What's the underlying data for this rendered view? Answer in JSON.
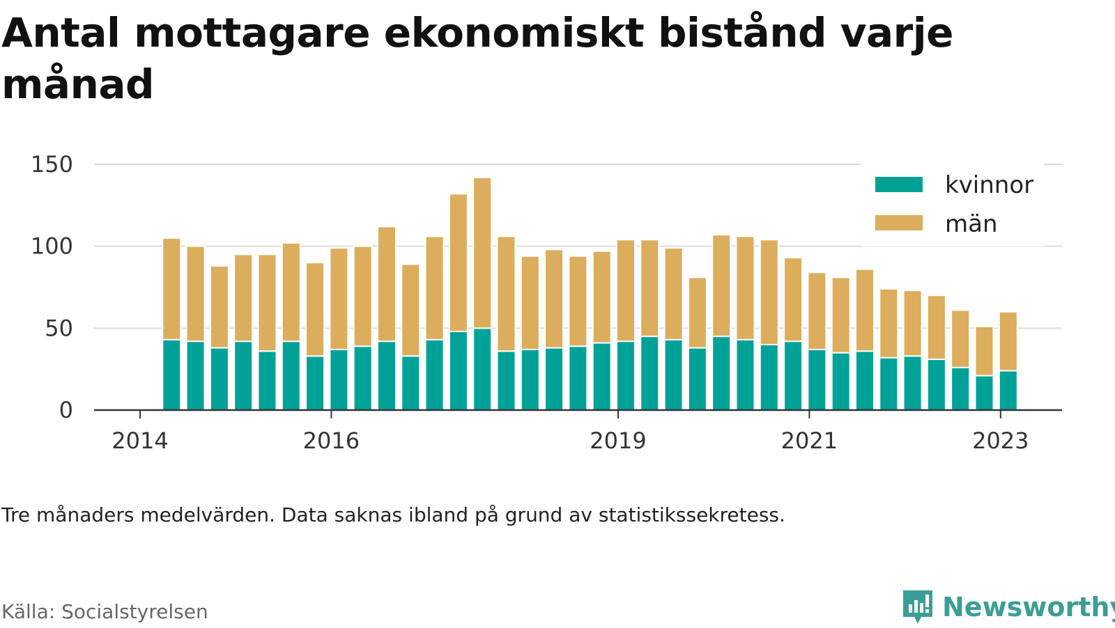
{
  "title": "Antal mottagare ekonomiskt bistånd varje månad",
  "note": "Tre månaders medelvärden. Data saknas ibland på grund av statistikssekretess.",
  "source": "Källa: Socialstyrelsen",
  "brand": {
    "name": "Newsworthy",
    "icon": "newsworthy-logo-icon",
    "color": "#3a9e96"
  },
  "colors": {
    "kvinnor": "#00a297",
    "man": "#dbad5c",
    "grid": "#dddddd",
    "axis": "#333333"
  },
  "chart_data": {
    "type": "bar",
    "stacked": true,
    "title": "Antal mottagare ekonomiskt bistånd varje månad",
    "xlabel": "",
    "ylabel": "",
    "ylim": [
      0,
      150
    ],
    "yticks": [
      0,
      50,
      100,
      150
    ],
    "xlim": [
      2014,
      2023.4
    ],
    "xticks": [
      2014,
      2016,
      2019,
      2021,
      2023
    ],
    "grid": true,
    "legend_position": "top-right",
    "x": [
      2014.33,
      2014.58,
      2014.83,
      2015.08,
      2015.33,
      2015.58,
      2015.83,
      2016.08,
      2016.33,
      2016.58,
      2016.83,
      2017.08,
      2017.33,
      2017.58,
      2017.83,
      2018.08,
      2018.33,
      2018.58,
      2018.83,
      2019.08,
      2019.33,
      2019.58,
      2019.83,
      2020.08,
      2020.33,
      2020.58,
      2020.83,
      2021.08,
      2021.33,
      2021.58,
      2021.83,
      2022.08,
      2022.33,
      2022.58,
      2022.83,
      2023.08
    ],
    "series": [
      {
        "name": "kvinnor",
        "color": "#00a297",
        "values": [
          43,
          42,
          38,
          42,
          36,
          42,
          33,
          37,
          39,
          42,
          33,
          43,
          48,
          50,
          36,
          37,
          38,
          39,
          41,
          42,
          45,
          43,
          38,
          45,
          43,
          40,
          42,
          37,
          35,
          36,
          32,
          33,
          31,
          26,
          21,
          24
        ]
      },
      {
        "name": "män",
        "color": "#dbad5c",
        "values": [
          62,
          58,
          50,
          53,
          59,
          60,
          57,
          62,
          61,
          70,
          56,
          63,
          84,
          92,
          70,
          57,
          60,
          55,
          56,
          62,
          59,
          56,
          43,
          62,
          63,
          64,
          51,
          47,
          46,
          50,
          42,
          40,
          39,
          35,
          30,
          36
        ]
      }
    ]
  }
}
